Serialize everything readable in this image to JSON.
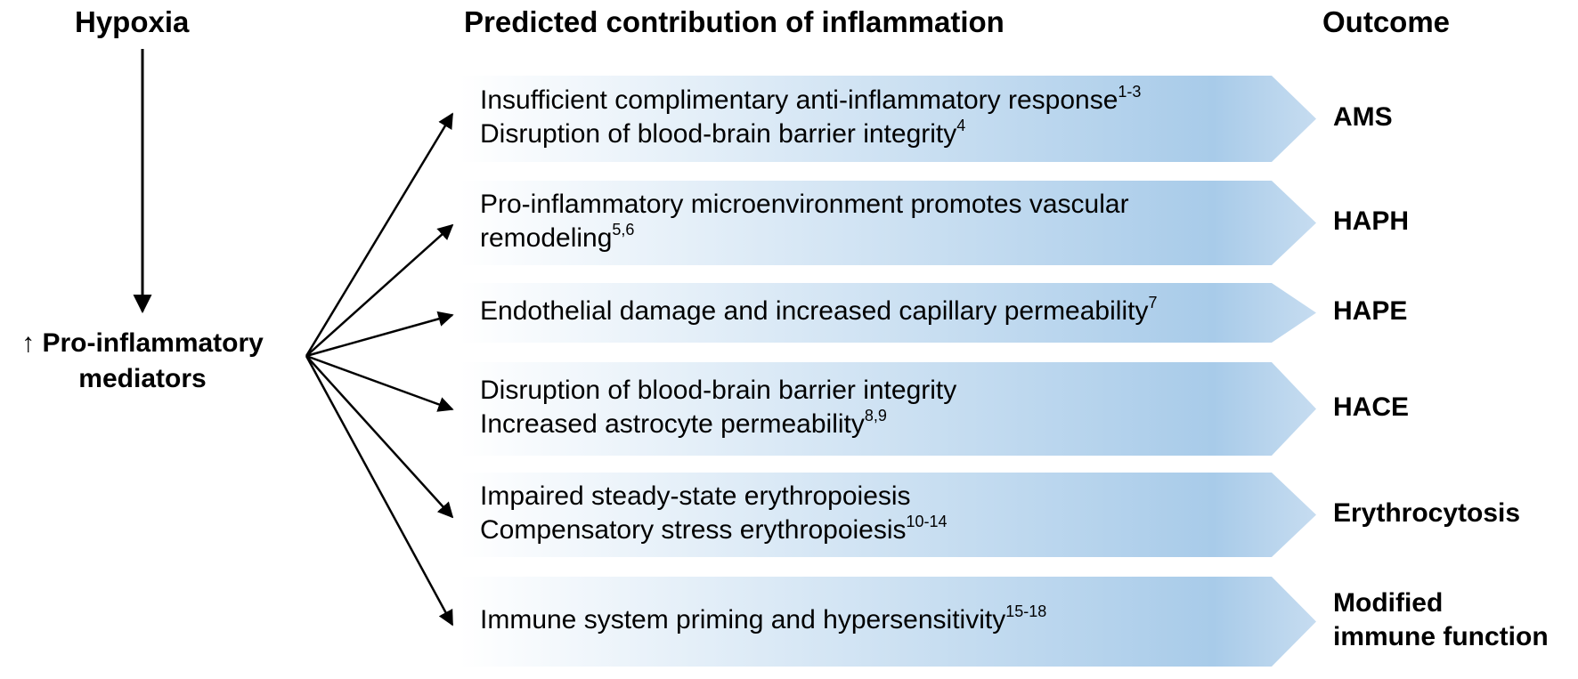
{
  "headers": {
    "hypoxia": "Hypoxia",
    "predicted": "Predicted contribution of inflammation",
    "outcome": "Outcome"
  },
  "source": {
    "arrow_glyph": "↑",
    "line1": "Pro-inflammatory",
    "line2": "mediators"
  },
  "rows": [
    {
      "lines": [
        {
          "text": "Insufficient complimentary anti-inflammatory response",
          "ref": "1-3"
        },
        {
          "text": "Disruption of blood-brain barrier integrity",
          "ref": "4"
        }
      ],
      "outcome": [
        "AMS"
      ]
    },
    {
      "lines": [
        {
          "text": "Pro-inflammatory microenvironment promotes vascular",
          "ref": ""
        },
        {
          "text": "remodeling",
          "ref": "5,6"
        }
      ],
      "outcome": [
        "HAPH"
      ]
    },
    {
      "lines": [
        {
          "text": "Endothelial damage and increased capillary permeability",
          "ref": "7"
        }
      ],
      "outcome": [
        "HAPE"
      ]
    },
    {
      "lines": [
        {
          "text": "Disruption of blood-brain barrier integrity",
          "ref": ""
        },
        {
          "text": "Increased astrocyte permeability",
          "ref": "8,9"
        }
      ],
      "outcome": [
        "HACE"
      ]
    },
    {
      "lines": [
        {
          "text": "Impaired steady-state erythropoiesis",
          "ref": ""
        },
        {
          "text": "Compensatory stress erythropoiesis",
          "ref": "10-14"
        }
      ],
      "outcome": [
        "Erythrocytosis"
      ]
    },
    {
      "lines": [
        {
          "text": "Immune system priming and hypersensitivity",
          "ref": "15-18"
        }
      ],
      "outcome": [
        "Modified",
        "immune function"
      ]
    }
  ],
  "colors": {
    "band_light": "#ffffff",
    "band_dark": "#a8cbe9",
    "arrow": "#000000"
  }
}
